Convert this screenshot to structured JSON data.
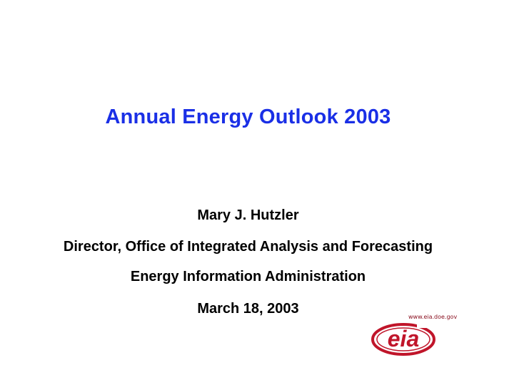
{
  "slide": {
    "title": "Annual Energy Outlook 2003",
    "presenter": "Mary J. Hutzler",
    "position": "Director, Office of Integrated Analysis and Forecasting",
    "organization": "Energy Information Administration",
    "date": "March 18, 2003"
  },
  "logo": {
    "url": "www.eia.doe.gov",
    "text": "eia",
    "color": "#c0152a"
  },
  "colors": {
    "title": "#1a2fe6",
    "body": "#000000",
    "background": "#ffffff"
  }
}
